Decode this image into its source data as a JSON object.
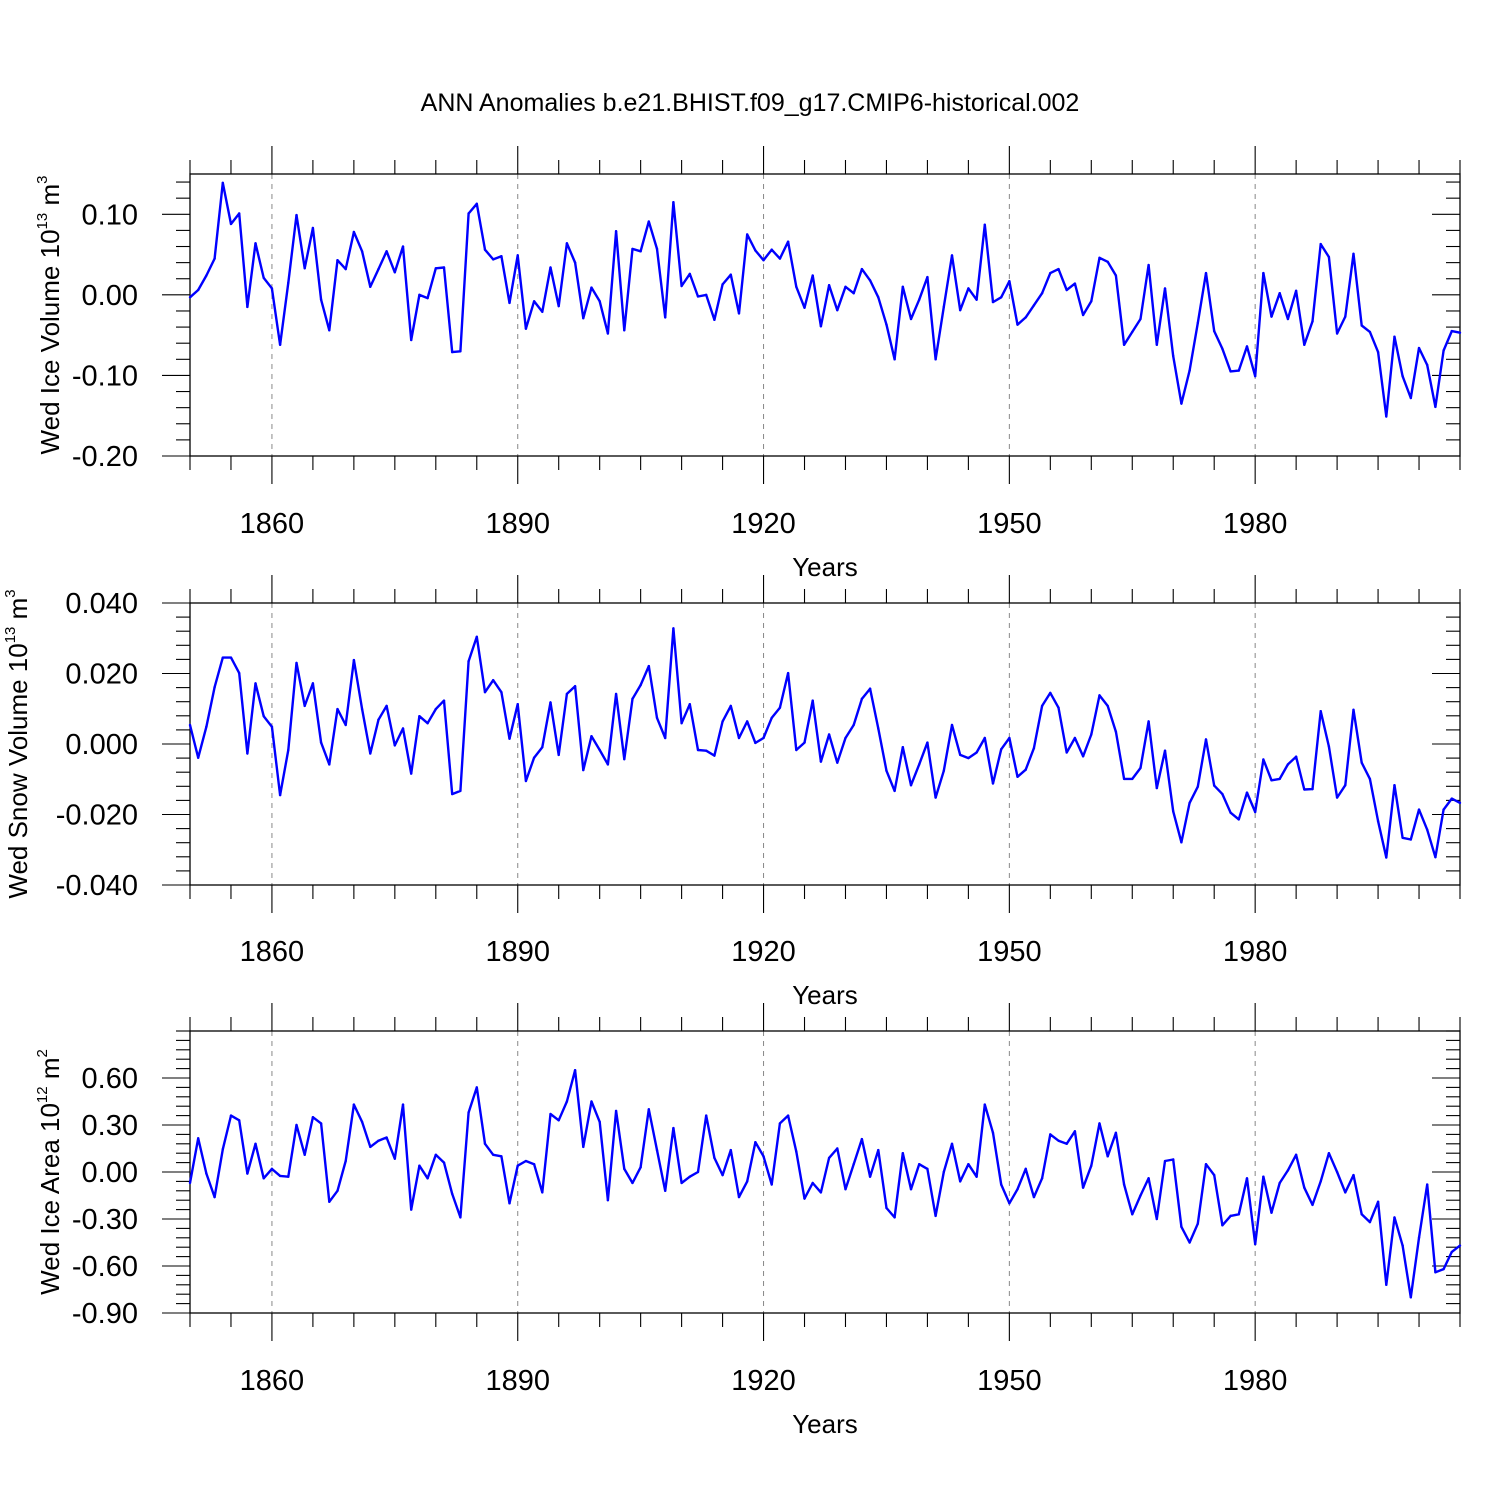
{
  "title": "ANN Anomalies b.e21.BHIST.f09_g17.CMIP6-historical.002",
  "colors": {
    "series": "#0000ff",
    "axis": "#000000",
    "grid": "#888888"
  },
  "chart_data": [
    {
      "type": "line",
      "ylabel": {
        "text": "Wed Ice Volume 10",
        "exp": "13",
        "unit": " m",
        "unit_exp": "3"
      },
      "xlabel": "Years",
      "xlim": [
        1850,
        2005
      ],
      "ylim": [
        -0.2,
        0.15
      ],
      "yticks": [
        -0.2,
        -0.1,
        0.0,
        0.1
      ],
      "ytick_labels": [
        "-0.20",
        "-0.10",
        "0.00",
        "0.10"
      ],
      "xticks": [
        1860,
        1890,
        1920,
        1950,
        1980
      ],
      "xtick_labels": [
        "1860",
        "1890",
        "1920",
        "1950",
        "1980"
      ],
      "grid": "vertical dashed at major x ticks",
      "x_start": 1850,
      "x_step": 1,
      "values": [
        -0.003,
        0.006,
        0.024,
        0.045,
        0.139,
        0.088,
        0.101,
        -0.015,
        0.064,
        0.021,
        0.008,
        -0.062,
        0.015,
        0.099,
        0.033,
        0.083,
        -0.006,
        -0.044,
        0.043,
        0.032,
        0.078,
        0.054,
        0.01,
        0.032,
        0.054,
        0.028,
        0.06,
        -0.056,
        0.0,
        -0.004,
        0.033,
        0.034,
        -0.071,
        -0.07,
        0.101,
        0.113,
        0.056,
        0.044,
        0.048,
        -0.01,
        0.049,
        -0.042,
        -0.008,
        -0.021,
        0.034,
        -0.014,
        0.064,
        0.04,
        -0.029,
        0.009,
        -0.008,
        -0.048,
        0.079,
        -0.044,
        0.057,
        0.054,
        0.091,
        0.057,
        -0.028,
        0.115,
        0.011,
        0.026,
        -0.002,
        0.0,
        -0.031,
        0.013,
        0.025,
        -0.023,
        0.075,
        0.055,
        0.043,
        0.056,
        0.045,
        0.066,
        0.01,
        -0.016,
        0.024,
        -0.039,
        0.012,
        -0.019,
        0.01,
        0.002,
        0.032,
        0.018,
        -0.003,
        -0.037,
        -0.08,
        0.01,
        -0.03,
        -0.006,
        0.022,
        -0.08,
        -0.015,
        0.049,
        -0.019,
        0.008,
        -0.006,
        0.087,
        -0.009,
        -0.003,
        0.017,
        -0.037,
        -0.028,
        -0.013,
        0.002,
        0.027,
        0.032,
        0.006,
        0.014,
        -0.025,
        -0.008,
        0.046,
        0.041,
        0.024,
        -0.062,
        -0.046,
        -0.03,
        0.037,
        -0.062,
        0.008,
        -0.076,
        -0.135,
        -0.094,
        -0.035,
        0.027,
        -0.045,
        -0.067,
        -0.095,
        -0.094,
        -0.064,
        -0.101,
        0.027,
        -0.027,
        0.002,
        -0.03,
        0.005,
        -0.062,
        -0.033,
        0.063,
        0.047,
        -0.048,
        -0.027,
        0.051,
        -0.038,
        -0.046,
        -0.071,
        -0.151,
        -0.052,
        -0.101,
        -0.128,
        -0.066,
        -0.087,
        -0.139,
        -0.069,
        -0.045,
        -0.047
      ]
    },
    {
      "type": "line",
      "ylabel": {
        "text": "Wed Snow Volume 10",
        "exp": "13",
        "unit": " m",
        "unit_exp": "3"
      },
      "xlabel": "Years",
      "xlim": [
        1850,
        2005
      ],
      "ylim": [
        -0.04,
        0.04
      ],
      "yticks": [
        -0.04,
        -0.02,
        0.0,
        0.02,
        0.04
      ],
      "ytick_labels": [
        "-0.040",
        "-0.020",
        "0.000",
        "0.020",
        "0.040"
      ],
      "xticks": [
        1860,
        1890,
        1920,
        1950,
        1980
      ],
      "xtick_labels": [
        "1860",
        "1890",
        "1920",
        "1950",
        "1980"
      ],
      "grid": "vertical dashed at major x ticks",
      "x_start": 1850,
      "x_step": 1,
      "values": [
        0.0054,
        -0.0039,
        0.0049,
        0.0161,
        0.0245,
        0.0245,
        0.0201,
        -0.0027,
        0.0172,
        0.0079,
        0.0049,
        -0.0145,
        -0.0017,
        0.023,
        0.0108,
        0.0172,
        0.0004,
        -0.0058,
        0.0099,
        0.0054,
        0.0238,
        0.0099,
        -0.0027,
        0.0069,
        0.0108,
        -0.0004,
        0.0044,
        -0.0084,
        0.0079,
        0.0059,
        0.0099,
        0.0123,
        -0.0142,
        -0.0133,
        0.0235,
        0.0304,
        0.0147,
        0.0181,
        0.0147,
        0.0015,
        0.0113,
        -0.0105,
        -0.0039,
        -0.0009,
        0.0118,
        -0.0031,
        0.0142,
        0.0164,
        -0.0074,
        0.0022,
        -0.0017,
        -0.0058,
        0.0142,
        -0.0043,
        0.0128,
        0.0167,
        0.0221,
        0.0074,
        0.0017,
        0.0328,
        0.0059,
        0.0113,
        -0.0017,
        -0.0019,
        -0.0033,
        0.0064,
        0.0108,
        0.0017,
        0.0064,
        0.0003,
        0.0017,
        0.0074,
        0.0103,
        0.0201,
        -0.0017,
        0.0004,
        0.0123,
        -0.005,
        0.0027,
        -0.0053,
        0.0017,
        0.0054,
        0.0128,
        0.0157,
        0.0044,
        -0.0076,
        -0.0133,
        -0.0009,
        -0.0117,
        -0.0058,
        0.0004,
        -0.0152,
        -0.0076,
        0.0054,
        -0.0031,
        -0.004,
        -0.0024,
        0.0017,
        -0.0112,
        -0.0015,
        0.0017,
        -0.0093,
        -0.0073,
        -0.0012,
        0.0108,
        0.0145,
        0.0103,
        -0.0024,
        0.0017,
        -0.0035,
        0.0027,
        0.0138,
        0.0108,
        0.0035,
        -0.0099,
        -0.0099,
        -0.0068,
        0.0064,
        -0.0125,
        -0.0019,
        -0.0191,
        -0.0279,
        -0.0167,
        -0.0121,
        0.0013,
        -0.0118,
        -0.0142,
        -0.0195,
        -0.0214,
        -0.0138,
        -0.0193,
        -0.0044,
        -0.0103,
        -0.0099,
        -0.0058,
        -0.0036,
        -0.0129,
        -0.0128,
        0.0093,
        -0.0007,
        -0.0152,
        -0.0117,
        0.0097,
        -0.0053,
        -0.0099,
        -0.0219,
        -0.0322,
        -0.0117,
        -0.0266,
        -0.0271,
        -0.0186,
        -0.0243,
        -0.0321,
        -0.0186,
        -0.0155,
        -0.0167
      ]
    },
    {
      "type": "line",
      "ylabel": {
        "text": "Wed Ice Area 10",
        "exp": "12",
        "unit": " m",
        "unit_exp": "2"
      },
      "xlabel": "Years",
      "xlim": [
        1850,
        2005
      ],
      "ylim": [
        -0.9,
        0.9
      ],
      "yticks": [
        -0.9,
        -0.6,
        -0.3,
        0.0,
        0.3,
        0.6
      ],
      "ytick_labels": [
        "-0.90",
        "-0.60",
        "-0.30",
        "0.00",
        "0.30",
        "0.60"
      ],
      "xticks": [
        1860,
        1890,
        1920,
        1950,
        1980
      ],
      "xtick_labels": [
        "1860",
        "1890",
        "1920",
        "1950",
        "1980"
      ],
      "grid": "vertical dashed at major x ticks",
      "x_start": 1850,
      "x_step": 1,
      "values": [
        -0.07,
        0.215,
        -0.01,
        -0.16,
        0.145,
        0.36,
        0.33,
        -0.01,
        0.18,
        -0.04,
        0.02,
        -0.025,
        -0.03,
        0.3,
        0.11,
        0.35,
        0.31,
        -0.19,
        -0.12,
        0.07,
        0.43,
        0.32,
        0.16,
        0.2,
        0.22,
        0.085,
        0.43,
        -0.24,
        0.04,
        -0.04,
        0.11,
        0.06,
        -0.14,
        -0.29,
        0.38,
        0.54,
        0.18,
        0.11,
        0.1,
        -0.2,
        0.04,
        0.07,
        0.05,
        -0.13,
        0.37,
        0.33,
        0.45,
        0.65,
        0.16,
        0.45,
        0.32,
        -0.18,
        0.39,
        0.02,
        -0.07,
        0.03,
        0.4,
        0.14,
        -0.12,
        0.28,
        -0.07,
        -0.03,
        0.0,
        0.36,
        0.09,
        -0.02,
        0.14,
        -0.16,
        -0.06,
        0.19,
        0.1,
        -0.08,
        0.31,
        0.36,
        0.13,
        -0.17,
        -0.07,
        -0.13,
        0.09,
        0.15,
        -0.11,
        0.05,
        0.21,
        -0.03,
        0.14,
        -0.23,
        -0.29,
        0.12,
        -0.11,
        0.05,
        0.02,
        -0.28,
        0.0,
        0.18,
        -0.06,
        0.05,
        -0.03,
        0.43,
        0.25,
        -0.08,
        -0.2,
        -0.11,
        0.02,
        -0.16,
        -0.04,
        0.24,
        0.2,
        0.18,
        0.26,
        -0.1,
        0.04,
        0.31,
        0.1,
        0.25,
        -0.08,
        -0.27,
        -0.15,
        -0.04,
        -0.3,
        0.07,
        0.08,
        -0.35,
        -0.45,
        -0.33,
        0.05,
        -0.02,
        -0.34,
        -0.28,
        -0.27,
        -0.04,
        -0.46,
        -0.03,
        -0.26,
        -0.07,
        0.01,
        0.11,
        -0.1,
        -0.21,
        -0.06,
        0.12,
        0.0,
        -0.13,
        -0.02,
        -0.27,
        -0.32,
        -0.19,
        -0.72,
        -0.29,
        -0.47,
        -0.8,
        -0.42,
        -0.08,
        -0.64,
        -0.62,
        -0.51,
        -0.47
      ]
    }
  ]
}
